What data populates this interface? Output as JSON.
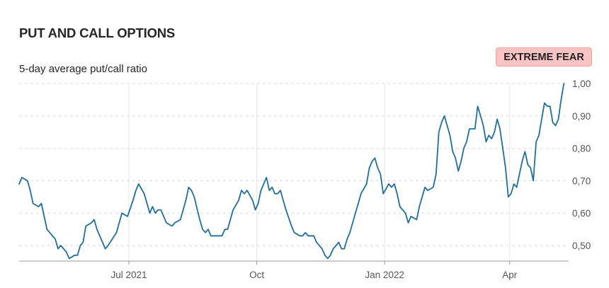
{
  "header": {
    "title": "PUT AND CALL OPTIONS",
    "subtitle": "5-day average put/call ratio",
    "badge": "EXTREME FEAR"
  },
  "colors": {
    "line": "#1f6e9c",
    "badge_bg": "#fbc4c4",
    "grid": "#d9d9d9"
  },
  "chart_data": {
    "type": "line",
    "title": "PUT AND CALL OPTIONS",
    "subtitle": "5-day average put/call ratio",
    "xlabel": "",
    "ylabel": "",
    "x_range": [
      "2021-04-13",
      "2022-04-22"
    ],
    "ylim": [
      0.45,
      1.0
    ],
    "y_ticks": [
      0.5,
      0.6,
      0.7,
      0.8,
      0.9,
      1.0
    ],
    "y_tick_labels": [
      "0,50",
      "0,60",
      "0,70",
      "0,80",
      "0,90",
      "1,00"
    ],
    "x_ticks": [
      {
        "date": "2021-07-01",
        "label": "Jul 2021"
      },
      {
        "date": "2021-10-01",
        "label": "Oct"
      },
      {
        "date": "2022-01-01",
        "label": "Jan 2022"
      },
      {
        "date": "2022-04-01",
        "label": "Apr"
      }
    ],
    "grid": {
      "horizontal": "dashed",
      "vertical": "solid"
    },
    "y_axis_side": "right",
    "series": [
      {
        "values": [
          [
            "2021-04-13",
            0.69
          ],
          [
            "2021-04-15",
            0.71
          ],
          [
            "2021-04-19",
            0.7
          ],
          [
            "2021-04-21",
            0.67
          ],
          [
            "2021-04-23",
            0.63
          ],
          [
            "2021-04-27",
            0.62
          ],
          [
            "2021-04-29",
            0.63
          ],
          [
            "2021-05-03",
            0.55
          ],
          [
            "2021-05-07",
            0.53
          ],
          [
            "2021-05-09",
            0.52
          ],
          [
            "2021-05-11",
            0.49
          ],
          [
            "2021-05-13",
            0.5
          ],
          [
            "2021-05-17",
            0.48
          ],
          [
            "2021-05-19",
            0.46
          ],
          [
            "2021-05-23",
            0.47
          ],
          [
            "2021-05-25",
            0.47
          ],
          [
            "2021-05-27",
            0.5
          ],
          [
            "2021-05-29",
            0.51
          ],
          [
            "2021-05-31",
            0.56
          ],
          [
            "2021-06-04",
            0.57
          ],
          [
            "2021-06-06",
            0.58
          ],
          [
            "2021-06-08",
            0.55
          ],
          [
            "2021-06-12",
            0.51
          ],
          [
            "2021-06-14",
            0.49
          ],
          [
            "2021-06-16",
            0.5
          ],
          [
            "2021-06-22",
            0.54
          ],
          [
            "2021-06-26",
            0.6
          ],
          [
            "2021-06-30",
            0.59
          ],
          [
            "2021-07-04",
            0.64
          ],
          [
            "2021-07-06",
            0.67
          ],
          [
            "2021-07-08",
            0.69
          ],
          [
            "2021-07-12",
            0.66
          ],
          [
            "2021-07-14",
            0.63
          ],
          [
            "2021-07-16",
            0.6
          ],
          [
            "2021-07-18",
            0.62
          ],
          [
            "2021-07-20",
            0.6
          ],
          [
            "2021-07-22",
            0.61
          ],
          [
            "2021-07-24",
            0.61
          ],
          [
            "2021-07-28",
            0.57
          ],
          [
            "2021-08-01",
            0.56
          ],
          [
            "2021-08-03",
            0.57
          ],
          [
            "2021-08-07",
            0.58
          ],
          [
            "2021-08-09",
            0.61
          ],
          [
            "2021-08-11",
            0.64
          ],
          [
            "2021-08-13",
            0.68
          ],
          [
            "2021-08-15",
            0.67
          ],
          [
            "2021-08-17",
            0.65
          ],
          [
            "2021-08-21",
            0.58
          ],
          [
            "2021-08-23",
            0.55
          ],
          [
            "2021-08-25",
            0.54
          ],
          [
            "2021-08-27",
            0.55
          ],
          [
            "2021-08-29",
            0.53
          ],
          [
            "2021-09-06",
            0.53
          ],
          [
            "2021-09-08",
            0.55
          ],
          [
            "2021-09-10",
            0.55
          ],
          [
            "2021-09-12",
            0.58
          ],
          [
            "2021-09-14",
            0.61
          ],
          [
            "2021-09-18",
            0.64
          ],
          [
            "2021-09-20",
            0.67
          ],
          [
            "2021-09-22",
            0.66
          ],
          [
            "2021-09-24",
            0.67
          ],
          [
            "2021-09-28",
            0.64
          ],
          [
            "2021-09-30",
            0.61
          ],
          [
            "2021-10-02",
            0.63
          ],
          [
            "2021-10-04",
            0.67
          ],
          [
            "2021-10-06",
            0.69
          ],
          [
            "2021-10-08",
            0.71
          ],
          [
            "2021-10-10",
            0.67
          ],
          [
            "2021-10-12",
            0.68
          ],
          [
            "2021-10-14",
            0.66
          ],
          [
            "2021-10-16",
            0.66
          ],
          [
            "2021-10-18",
            0.67
          ],
          [
            "2021-10-20",
            0.64
          ],
          [
            "2021-10-22",
            0.61
          ],
          [
            "2021-10-26",
            0.56
          ],
          [
            "2021-10-28",
            0.54
          ],
          [
            "2021-11-01",
            0.53
          ],
          [
            "2021-11-03",
            0.53
          ],
          [
            "2021-11-05",
            0.54
          ],
          [
            "2021-11-07",
            0.53
          ],
          [
            "2021-11-11",
            0.53
          ],
          [
            "2021-11-13",
            0.51
          ],
          [
            "2021-11-17",
            0.49
          ],
          [
            "2021-11-19",
            0.47
          ],
          [
            "2021-11-21",
            0.46
          ],
          [
            "2021-11-23",
            0.47
          ],
          [
            "2021-11-25",
            0.49
          ],
          [
            "2021-11-27",
            0.5
          ],
          [
            "2021-11-29",
            0.51
          ],
          [
            "2021-12-01",
            0.49
          ],
          [
            "2021-12-03",
            0.49
          ],
          [
            "2021-12-05",
            0.52
          ],
          [
            "2021-12-07",
            0.54
          ],
          [
            "2021-12-09",
            0.57
          ],
          [
            "2021-12-11",
            0.6
          ],
          [
            "2021-12-13",
            0.63
          ],
          [
            "2021-12-15",
            0.66
          ],
          [
            "2021-12-19",
            0.69
          ],
          [
            "2021-12-21",
            0.74
          ],
          [
            "2021-12-23",
            0.76
          ],
          [
            "2021-12-25",
            0.77
          ],
          [
            "2021-12-27",
            0.74
          ],
          [
            "2021-12-29",
            0.72
          ],
          [
            "2021-12-31",
            0.66
          ],
          [
            "2022-01-04",
            0.69
          ],
          [
            "2022-01-06",
            0.68
          ],
          [
            "2022-01-08",
            0.69
          ],
          [
            "2022-01-10",
            0.66
          ],
          [
            "2022-01-12",
            0.62
          ],
          [
            "2022-01-14",
            0.61
          ],
          [
            "2022-01-16",
            0.6
          ],
          [
            "2022-01-18",
            0.57
          ],
          [
            "2022-01-20",
            0.59
          ],
          [
            "2022-01-24",
            0.58
          ],
          [
            "2022-01-26",
            0.62
          ],
          [
            "2022-01-30",
            0.68
          ],
          [
            "2022-02-01",
            0.67
          ],
          [
            "2022-02-05",
            0.68
          ],
          [
            "2022-02-07",
            0.72
          ],
          [
            "2022-02-09",
            0.85
          ],
          [
            "2022-02-11",
            0.88
          ],
          [
            "2022-02-13",
            0.9
          ],
          [
            "2022-02-15",
            0.87
          ],
          [
            "2022-02-17",
            0.84
          ],
          [
            "2022-02-19",
            0.79
          ],
          [
            "2022-02-21",
            0.77
          ],
          [
            "2022-02-23",
            0.73
          ],
          [
            "2022-02-25",
            0.76
          ],
          [
            "2022-02-27",
            0.8
          ],
          [
            "2022-03-01",
            0.82
          ],
          [
            "2022-03-03",
            0.86
          ],
          [
            "2022-03-07",
            0.86
          ],
          [
            "2022-03-09",
            0.93
          ],
          [
            "2022-03-11",
            0.9
          ],
          [
            "2022-03-13",
            0.87
          ],
          [
            "2022-03-15",
            0.82
          ],
          [
            "2022-03-17",
            0.84
          ],
          [
            "2022-03-19",
            0.83
          ],
          [
            "2022-03-21",
            0.85
          ],
          [
            "2022-03-23",
            0.89
          ],
          [
            "2022-03-25",
            0.86
          ],
          [
            "2022-03-27",
            0.8
          ],
          [
            "2022-03-29",
            0.74
          ],
          [
            "2022-03-31",
            0.65
          ],
          [
            "2022-04-02",
            0.66
          ],
          [
            "2022-04-04",
            0.69
          ],
          [
            "2022-04-06",
            0.68
          ],
          [
            "2022-04-08",
            0.72
          ],
          [
            "2022-04-10",
            0.76
          ],
          [
            "2022-04-12",
            0.79
          ],
          [
            "2022-04-14",
            0.75
          ],
          [
            "2022-04-16",
            0.74
          ],
          [
            "2022-04-18",
            0.7
          ],
          [
            "2022-04-20",
            0.82
          ],
          [
            "2022-04-22",
            0.84
          ],
          [
            "2022-04-24",
            0.89
          ],
          [
            "2022-04-26",
            0.94
          ],
          [
            "2022-04-28",
            0.93
          ],
          [
            "2022-04-30",
            0.93
          ],
          [
            "2022-05-02",
            0.88
          ],
          [
            "2022-05-04",
            0.87
          ],
          [
            "2022-05-06",
            0.89
          ],
          [
            "2022-05-08",
            0.95
          ],
          [
            "2022-05-10",
            1.0
          ]
        ]
      }
    ]
  }
}
